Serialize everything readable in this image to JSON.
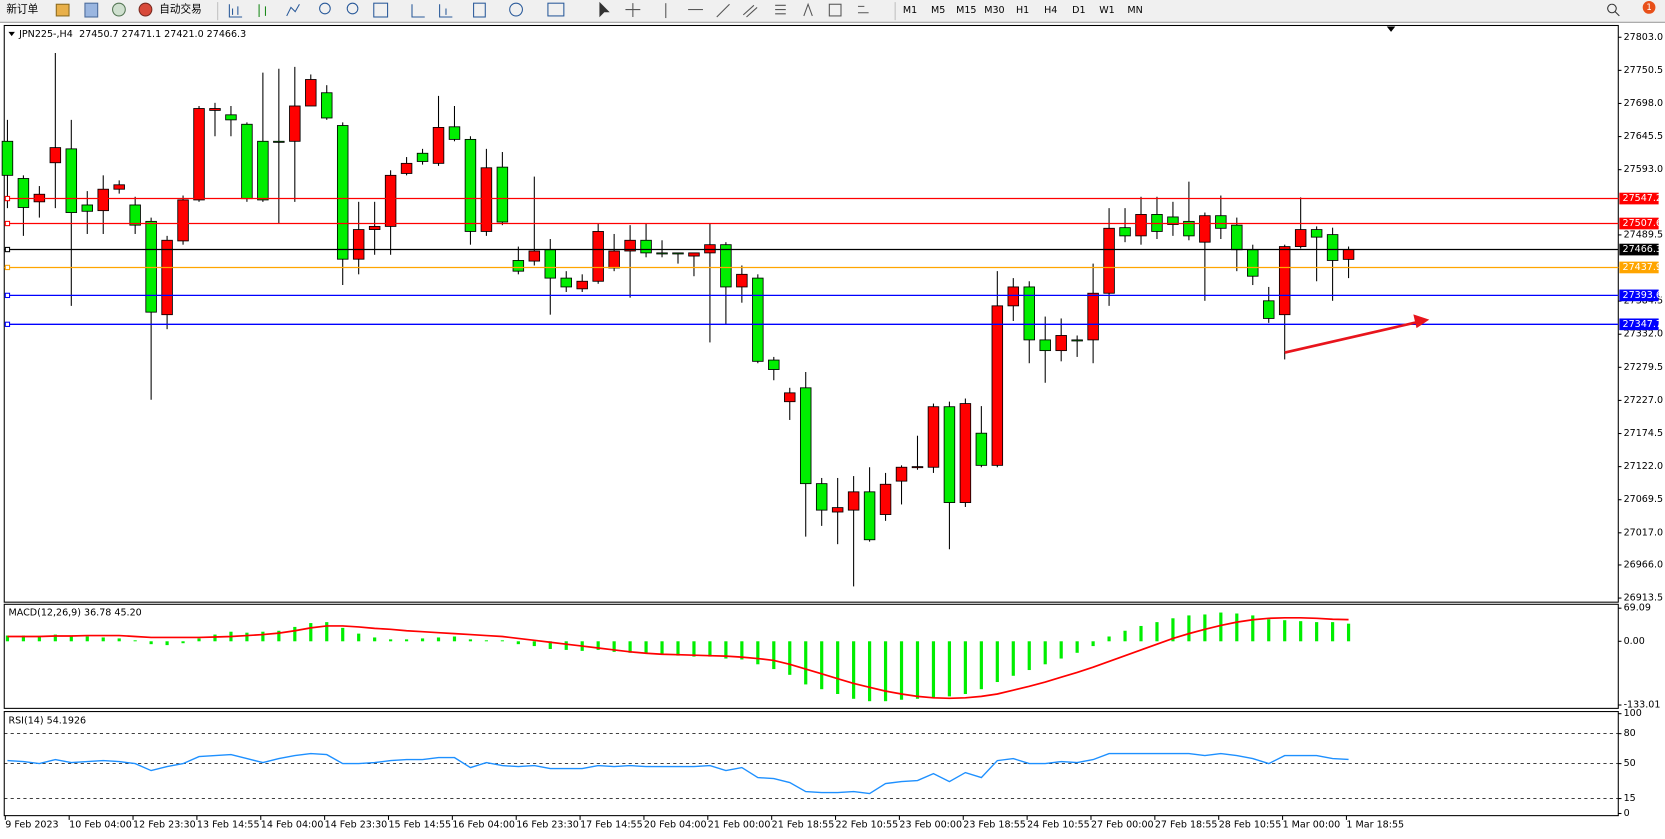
{
  "toolbar": {
    "new_order": "新订单",
    "auto_trading": "自动交易",
    "timeframes": [
      "M1",
      "M5",
      "M15",
      "M30",
      "H1",
      "H4",
      "D1",
      "W1",
      "MN"
    ],
    "notification_count": "1"
  },
  "chart_data": [
    {
      "type": "candlestick",
      "title": "JPN225-,H4",
      "subtitle": "27450.7 27471.1 27421.0 27466.3",
      "categories": [
        "9 Feb 2023",
        null,
        null,
        null,
        "10 Feb 04:00",
        null,
        null,
        null,
        "12 Feb 23:30",
        null,
        null,
        null,
        "13 Feb 14:55",
        null,
        null,
        null,
        "14 Feb 04:00",
        null,
        null,
        null,
        "14 Feb 23:30",
        null,
        null,
        null,
        "15 Feb 14:55",
        null,
        null,
        null,
        "16 Feb 04:00",
        null,
        null,
        null,
        "16 Feb 23:30",
        null,
        null,
        null,
        "17 Feb 14:55",
        null,
        null,
        null,
        "20 Feb 04:00",
        null,
        null,
        null,
        "21 Feb 00:00",
        null,
        null,
        null,
        "21 Feb 18:55",
        null,
        null,
        null,
        "22 Feb 10:55",
        null,
        null,
        null,
        "23 Feb 00:00",
        null,
        null,
        null,
        "23 Feb 18:55",
        null,
        null,
        null,
        "24 Feb 10:55",
        null,
        null,
        null,
        "27 Feb 00:00",
        null,
        null,
        null,
        "27 Feb 18:55",
        null,
        null,
        null,
        "28 Feb 10:55",
        null,
        null,
        null,
        "1 Mar 00:00",
        null,
        null,
        null,
        "1 Mar 18:55"
      ],
      "open": [
        27638,
        27579,
        27542,
        27604,
        27626,
        27537,
        27528,
        27562,
        27537,
        27511,
        27363,
        27480,
        27545,
        27687,
        27680,
        27665,
        27638,
        27638,
        27638,
        27694,
        27715,
        27663,
        27451,
        27498,
        27503,
        27587,
        27619,
        27603,
        27661,
        27641,
        27495,
        27597,
        27449,
        27448,
        27466,
        27421,
        27404,
        27416,
        27437,
        27464,
        27481,
        27461,
        27461,
        27456,
        27461,
        27474,
        27407,
        27421,
        27291,
        27225,
        27247,
        27095,
        27050,
        27053,
        27082,
        27046,
        27099,
        27121,
        27121,
        27217,
        27065,
        27175,
        27124,
        27377,
        27407,
        27323,
        27306,
        27323,
        27323,
        27397,
        27501,
        27488,
        27522,
        27518,
        27511,
        27478,
        27520,
        27505,
        27466,
        27385,
        27363,
        27471,
        27498,
        27490,
        27450.7
      ],
      "high": [
        27672,
        27584,
        27567,
        27778,
        27672,
        27559,
        27584,
        27576,
        27550,
        27517,
        27488,
        27552,
        27694,
        27699,
        27694,
        27668,
        27747,
        27753,
        27756,
        27744,
        27727,
        27668,
        27542,
        27542,
        27592,
        27613,
        27626,
        27710,
        27694,
        27646,
        27626,
        27621,
        27471,
        27582,
        27483,
        27432,
        27427,
        27508,
        27491,
        27505,
        27508,
        27481,
        27461,
        27461,
        27508,
        27478,
        27441,
        27427,
        27296,
        27247,
        27272,
        27104,
        27104,
        27107,
        27121,
        27112,
        27124,
        27171,
        27222,
        27225,
        27230,
        27218,
        27432,
        27421,
        27416,
        27360,
        27357,
        27330,
        27444,
        27532,
        27532,
        27550,
        27550,
        27542,
        27574,
        27525,
        27552,
        27517,
        27474,
        27407,
        27474,
        27549,
        27503,
        27501,
        27471.1
      ],
      "low": [
        27532,
        27488,
        27517,
        27532,
        27377,
        27491,
        27491,
        27555,
        27491,
        27228,
        27340,
        27474,
        27542,
        27646,
        27646,
        27542,
        27542,
        27508,
        27542,
        27694,
        27672,
        27410,
        27427,
        27458,
        27458,
        27584,
        27601,
        27599,
        27638,
        27474,
        27488,
        27505,
        27427,
        27441,
        27363,
        27399,
        27399,
        27412,
        27432,
        27390,
        27454,
        27454,
        27444,
        27424,
        27319,
        27348,
        27382,
        27286,
        27259,
        27196,
        27011,
        27028,
        26999,
        26932,
        27003,
        27036,
        27062,
        27117,
        27112,
        26991,
        27058,
        27121,
        27121,
        27353,
        27286,
        27255,
        27289,
        27296,
        27286,
        27377,
        27478,
        27474,
        27483,
        27488,
        27481,
        27385,
        27483,
        27432,
        27410,
        27350,
        27292,
        27468,
        27416,
        27385,
        27421.0
      ],
      "close": [
        27584,
        27533,
        27554,
        27628,
        27525,
        27527,
        27562,
        27569,
        27505,
        27367,
        27481,
        27545,
        27690,
        27690,
        27672,
        27547,
        27545,
        27638,
        27694,
        27736,
        27675,
        27451,
        27498,
        27503,
        27584,
        27603,
        27606,
        27660,
        27641,
        27495,
        27596,
        27510,
        27432,
        27464,
        27421,
        27407,
        27416,
        27495,
        27464,
        27481,
        27461,
        27461,
        27461,
        27461,
        27474,
        27407,
        27427,
        27289,
        27276,
        27239,
        27095,
        27053,
        27057,
        27082,
        27006,
        27094,
        27121,
        27122,
        27217,
        27065,
        27222,
        27124,
        27377,
        27407,
        27323,
        27306,
        27330,
        27323,
        27397,
        27500,
        27488,
        27522,
        27495,
        27506,
        27488,
        27520,
        27500,
        27466,
        27424,
        27357,
        27471,
        27498,
        27486,
        27449,
        27466.3
      ],
      "up_color": "#ff0000",
      "down_color": "#00ee00",
      "ylim": [
        26907,
        27820
      ],
      "yticks": [
        {
          "value": 27803,
          "label": "27803.0"
        },
        27750.5,
        {
          "value": 27698,
          "label": "27698.0"
        },
        27645.5,
        {
          "value": 27593,
          "label": "27593.0"
        },
        27489.5,
        27384.5,
        {
          "value": 27332,
          "label": "27332.0"
        },
        27279.5,
        {
          "value": 27227,
          "label": "27227.0"
        },
        27174.5,
        {
          "value": 27122,
          "label": "27122.0"
        },
        27069.5,
        {
          "value": 27017,
          "label": "27017.0"
        },
        {
          "value": 26966,
          "label": "26966.0"
        },
        26913.5
      ],
      "hlines": [
        {
          "value": 27547.2,
          "color": "#ff0000"
        },
        {
          "value": 27507.6,
          "color": "#ff0000"
        },
        {
          "value": 27466.3,
          "color": "#000000"
        },
        {
          "value": 27437.9,
          "color": "#ffa500"
        },
        {
          "value": 27393.6,
          "color": "#0000ff"
        },
        {
          "value": 27347.7,
          "color": "#0000ff"
        }
      ]
    },
    {
      "type": "macd",
      "title": "MACD(12,26,9) 36.78 45.20",
      "values": [
        12,
        12,
        10,
        14,
        12,
        10,
        8,
        6,
        2,
        -6,
        -8,
        -4,
        6,
        14,
        20,
        18,
        20,
        22,
        30,
        38,
        40,
        28,
        16,
        8,
        4,
        4,
        6,
        8,
        10,
        4,
        2,
        2,
        -6,
        -10,
        -16,
        -18,
        -20,
        -18,
        -22,
        -24,
        -26,
        -28,
        -30,
        -32,
        -32,
        -36,
        -38,
        -48,
        -58,
        -70,
        -90,
        -100,
        -110,
        -120,
        -125,
        -125,
        -122,
        -120,
        -118,
        -115,
        -110,
        -100,
        -85,
        -72,
        -60,
        -48,
        -36,
        -24,
        -10,
        10,
        22,
        32,
        40,
        48,
        54,
        56,
        60,
        58,
        54,
        46,
        44,
        42,
        40,
        40,
        36.78
      ],
      "color": "#00ee00",
      "signal_values": [
        10,
        10,
        10,
        11,
        11,
        12,
        12,
        12,
        10,
        8,
        8,
        8,
        8,
        9,
        10,
        12,
        14,
        17,
        22,
        28,
        32,
        32,
        30,
        27,
        25,
        22,
        20,
        18,
        16,
        14,
        12,
        10,
        6,
        2,
        -2,
        -6,
        -10,
        -14,
        -18,
        -22,
        -25,
        -27,
        -28,
        -29,
        -30,
        -31,
        -33,
        -36,
        -40,
        -48,
        -58,
        -68,
        -78,
        -88,
        -96,
        -104,
        -110,
        -115,
        -118,
        -119,
        -118,
        -115,
        -110,
        -102,
        -94,
        -85,
        -75,
        -65,
        -54,
        -42,
        -30,
        -18,
        -6,
        6,
        16,
        25,
        33,
        40,
        45,
        48,
        49,
        49,
        48,
        46,
        45.2
      ],
      "signal_color": "#ff0000",
      "ylim": [
        -140,
        75
      ],
      "yticks": [
        69.09,
        {
          "value": 0,
          "label": "0.00"
        },
        -133.01
      ]
    },
    {
      "type": "rsi",
      "title": "RSI(14) 54.1926",
      "values": [
        53,
        52,
        50,
        54,
        51,
        52,
        53,
        52,
        50,
        43,
        47,
        50,
        57,
        58,
        59,
        55,
        51,
        55,
        58,
        60,
        59,
        50,
        50,
        51,
        53,
        54,
        54,
        56,
        56,
        46,
        51,
        48,
        47,
        48,
        45,
        45,
        45,
        48,
        47,
        48,
        47,
        47,
        47,
        47,
        48,
        43,
        46,
        36,
        35,
        31,
        22,
        21,
        21,
        22,
        20,
        30,
        32,
        33,
        40,
        32,
        41,
        36,
        53,
        55,
        50,
        50,
        52,
        51,
        54,
        60,
        60,
        60,
        60,
        60,
        60,
        58,
        60,
        58,
        55,
        50,
        58,
        58,
        58,
        55,
        54.1926
      ],
      "color": "#1e90ff",
      "ylim": [
        0,
        100
      ],
      "yticks": [
        100,
        80,
        50,
        15,
        0
      ],
      "levels": [
        80,
        50,
        15
      ]
    }
  ]
}
